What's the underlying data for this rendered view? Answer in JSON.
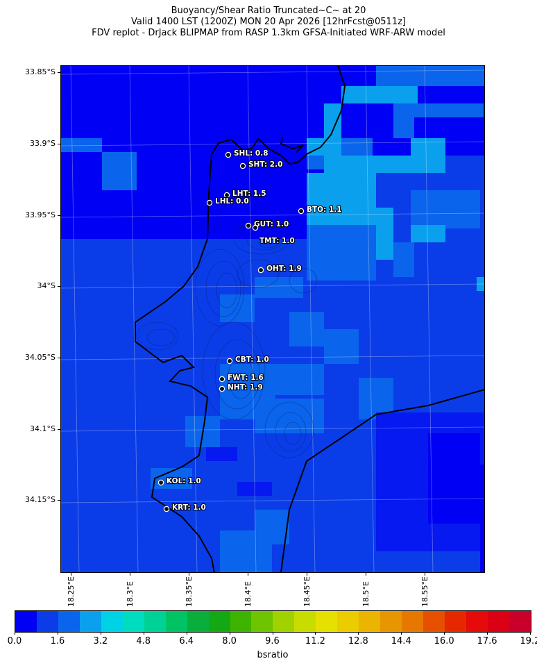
{
  "title": {
    "line1": "Buoyancy/Shear Ratio Truncated~C~    at 20",
    "line2": "Valid 1400 LST (1200Z) MON 20 Apr 2026 [12hrFcst@0511z]",
    "line3": "FDV replot - DrJack BLIPMAP from RASP 1.3km GFSA-Initiated WRF-ARW model"
  },
  "lat_labels": [
    "33.85°S",
    "33.9°S",
    "33.95°S",
    "34°S",
    "34.05°S",
    "34.1°S",
    "34.15°S"
  ],
  "lon_labels": [
    "18.25°E",
    "18.3°E",
    "18.35°E",
    "18.4°E",
    "18.45°E",
    "18.5°E",
    "18.55°E"
  ],
  "colors": {
    "land_base": "#0a3de8",
    "ocean": "#0000f5",
    "cell_mid": "#0a64ec",
    "cell_light": "#0aa0ee",
    "cell_deep": "#0519f0"
  },
  "stations": [
    {
      "code": "SHL",
      "value": "0.8",
      "label": "SHL: 0.8"
    },
    {
      "code": "SHT",
      "value": "2.0",
      "label": "SHT: 2.0"
    },
    {
      "code": "LHT",
      "value": "1.5",
      "label": "LHT: 1.5"
    },
    {
      "code": "LHL",
      "value": "0.0",
      "label": "LHL: 0.0"
    },
    {
      "code": "BTO",
      "value": "1.1",
      "label": "BTO: 1.1"
    },
    {
      "code": "GUT",
      "value": "1.0",
      "label": "GUT: 1.0"
    },
    {
      "code": "TMT",
      "value": "1.0",
      "label": "TMT: 1.0"
    },
    {
      "code": "OHT",
      "value": "1.9",
      "label": "OHT: 1.9"
    },
    {
      "code": "CBT",
      "value": "1.0",
      "label": "CBT: 1.0"
    },
    {
      "code": "FWT",
      "value": "1.6",
      "label": "FWT: 1.6"
    },
    {
      "code": "NHT",
      "value": "1.9",
      "label": "NHT: 1.9"
    },
    {
      "code": "KOL",
      "value": "1.0",
      "label": "KOL: 1.0"
    },
    {
      "code": "KRT",
      "value": "1.0",
      "label": "KRT: 1.0"
    }
  ],
  "colorbar": {
    "label": "bsratio",
    "tick_labels": [
      "0.0",
      "1.6",
      "3.2",
      "4.8",
      "6.4",
      "8.0",
      "9.6",
      "11.2",
      "12.8",
      "14.4",
      "16.0",
      "17.6",
      "19.2"
    ],
    "colors": [
      "#0000f5",
      "#0a3de8",
      "#0a64ec",
      "#0aa0ee",
      "#00d2e6",
      "#00dcc0",
      "#00d296",
      "#00c464",
      "#0aae3c",
      "#14a814",
      "#3cb400",
      "#6ec400",
      "#a0d200",
      "#c8dc00",
      "#e6e000",
      "#ebcc00",
      "#ebb400",
      "#e89600",
      "#e67800",
      "#e65000",
      "#e62800",
      "#e60a0a",
      "#dc0014",
      "#c8002a"
    ]
  }
}
